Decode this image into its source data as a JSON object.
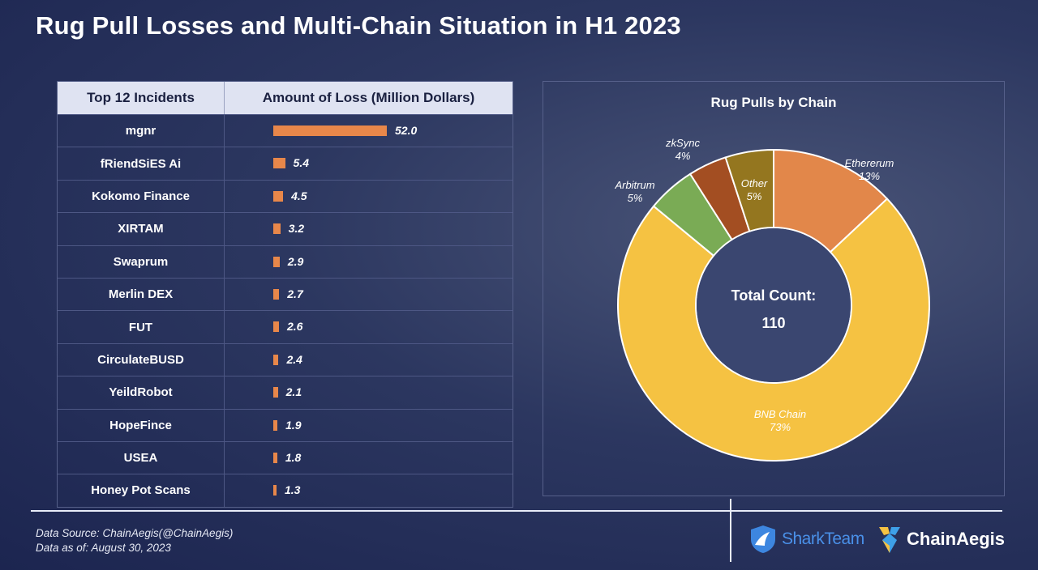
{
  "title": "Rug Pull Losses and Multi-Chain Situation in H1 2023",
  "table": {
    "headers": [
      "Top 12 Incidents",
      "Amount of Loss (Million Dollars)"
    ]
  },
  "chart_data": [
    {
      "type": "bar",
      "orientation": "horizontal",
      "categories": [
        "mgnr",
        "fRiendSiES Ai",
        "Kokomo Finance",
        "XIRTAM",
        "Swaprum",
        "Merlin DEX",
        "FUT",
        "CirculateBUSD",
        "YeildRobot",
        "HopeFince",
        "USEA",
        "Honey Pot Scans"
      ],
      "values": [
        52.0,
        5.4,
        4.5,
        3.2,
        2.9,
        2.7,
        2.6,
        2.4,
        2.1,
        1.9,
        1.8,
        1.3
      ],
      "value_labels": [
        "52.0",
        "5.4",
        "4.5",
        "3.2",
        "2.9",
        "2.7",
        "2.6",
        "2.4",
        "2.1",
        "1.9",
        "1.8",
        "1.3"
      ],
      "bar_color": "#e8874a"
    },
    {
      "type": "pie",
      "donut": true,
      "title": "Rug Pulls by Chain",
      "center_label": "Total Count:",
      "center_value": "110",
      "slices": [
        {
          "label": "Ethererum",
          "pct_label": "13%",
          "value": 13,
          "color": "#e2874a"
        },
        {
          "label": "BNB Chain",
          "pct_label": "73%",
          "value": 73,
          "color": "#f5c242"
        },
        {
          "label": "Arbitrum",
          "pct_label": "5%",
          "value": 5,
          "color": "#7aab55"
        },
        {
          "label": "zkSync",
          "pct_label": "4%",
          "value": 4,
          "color": "#a34e22"
        },
        {
          "label": "Other",
          "pct_label": "5%",
          "value": 5,
          "color": "#94761f"
        }
      ]
    }
  ],
  "footer": {
    "source": "Data Source: ChainAegis(@ChainAegis)",
    "date": "Data as of: August 30, 2023",
    "logo1": "SharkTeam",
    "logo2": "ChainAegis"
  }
}
